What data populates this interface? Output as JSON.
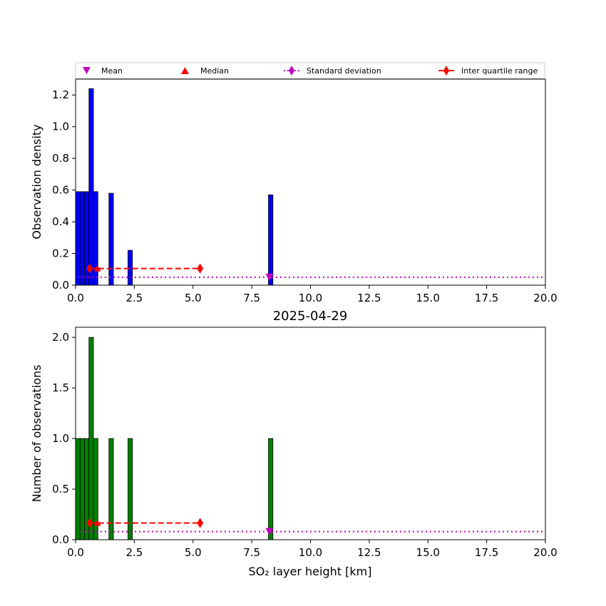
{
  "chart_data": [
    {
      "type": "bar",
      "ylabel": "Observation density",
      "xlim": [
        0,
        20
      ],
      "ylim": [
        0,
        1.3
      ],
      "xticks": [
        "0.0",
        "2.5",
        "5.0",
        "7.5",
        "10.0",
        "12.5",
        "15.0",
        "17.5",
        "20.0"
      ],
      "xtick_values": [
        0,
        2.5,
        5,
        7.5,
        10,
        12.5,
        15,
        17.5,
        20
      ],
      "yticks": [
        "0.0",
        "0.2",
        "0.4",
        "0.6",
        "0.8",
        "1.0",
        "1.2"
      ],
      "ytick_values": [
        0,
        0.2,
        0.4,
        0.6,
        0.8,
        1.0,
        1.2
      ],
      "bar_color": "#0000ff",
      "bins": [
        {
          "x0": 0.0,
          "x1": 0.19,
          "value": 0.59
        },
        {
          "x0": 0.19,
          "x1": 0.38,
          "value": 0.59
        },
        {
          "x0": 0.38,
          "x1": 0.57,
          "value": 0.59
        },
        {
          "x0": 0.57,
          "x1": 0.76,
          "value": 1.24
        },
        {
          "x0": 0.76,
          "x1": 0.95,
          "value": 0.59
        },
        {
          "x0": 1.42,
          "x1": 1.61,
          "value": 0.58
        },
        {
          "x0": 2.23,
          "x1": 2.42,
          "value": 0.22
        },
        {
          "x0": 8.21,
          "x1": 8.4,
          "value": 0.57
        }
      ],
      "mean": {
        "x": 8.25,
        "y": 0.05
      },
      "median": {
        "x": 0.93,
        "y": 0.105
      },
      "std_line": {
        "y": 0.05,
        "x0": 0.15,
        "x1": 20
      },
      "iqr": {
        "x0": 0.6,
        "x1": 5.3,
        "y": 0.105
      }
    },
    {
      "type": "bar",
      "title": "2025-04-29",
      "xlabel": "SO₂ layer height [km]",
      "ylabel": "Number of observations",
      "xlim": [
        0,
        20
      ],
      "ylim": [
        0,
        2.1
      ],
      "xticks": [
        "0.0",
        "2.5",
        "5.0",
        "7.5",
        "10.0",
        "12.5",
        "15.0",
        "17.5",
        "20.0"
      ],
      "xtick_values": [
        0,
        2.5,
        5,
        7.5,
        10,
        12.5,
        15,
        17.5,
        20
      ],
      "yticks": [
        "0.0",
        "0.5",
        "1.0",
        "1.5",
        "2.0"
      ],
      "ytick_values": [
        0,
        0.5,
        1.0,
        1.5,
        2.0
      ],
      "bar_color": "#008000",
      "bins": [
        {
          "x0": 0.0,
          "x1": 0.19,
          "value": 1
        },
        {
          "x0": 0.19,
          "x1": 0.38,
          "value": 1
        },
        {
          "x0": 0.38,
          "x1": 0.57,
          "value": 1
        },
        {
          "x0": 0.57,
          "x1": 0.76,
          "value": 2
        },
        {
          "x0": 0.76,
          "x1": 0.95,
          "value": 1
        },
        {
          "x0": 1.42,
          "x1": 1.61,
          "value": 1
        },
        {
          "x0": 2.23,
          "x1": 2.42,
          "value": 1
        },
        {
          "x0": 8.21,
          "x1": 8.4,
          "value": 1
        }
      ],
      "mean": {
        "x": 8.25,
        "y": 0.08
      },
      "median": {
        "x": 0.93,
        "y": 0.165
      },
      "std_line": {
        "y": 0.08,
        "x0": 0.15,
        "x1": 20
      },
      "iqr": {
        "x0": 0.6,
        "x1": 5.3,
        "y": 0.165
      }
    }
  ],
  "legend": {
    "placement": "top",
    "entries": [
      {
        "label": "Mean",
        "marker": "triangle-down",
        "color": "#bf00bf"
      },
      {
        "label": "Median",
        "marker": "triangle-up",
        "color": "#ff0000"
      },
      {
        "label": "Standard deviation",
        "marker": "diamond-dotted-line",
        "color": "#bf00bf"
      },
      {
        "label": "Inter quartile range",
        "marker": "diamond-dashed-line",
        "color": "#ff0000"
      }
    ]
  },
  "colors": {
    "mean": "#bf00bf",
    "median": "#ff0000",
    "std": "#bf00bf",
    "iqr": "#ff0000"
  }
}
